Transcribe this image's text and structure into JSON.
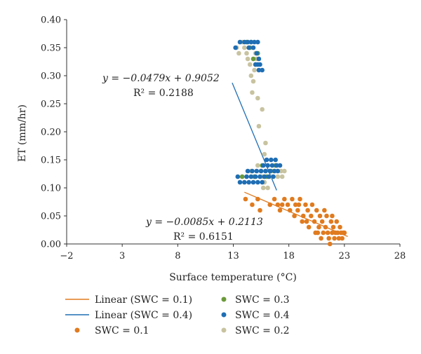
{
  "chart_data": {
    "type": "scatter",
    "title": "",
    "xlabel": "Surface temperature (°C)",
    "ylabel": "ET (mm/hr)",
    "xlim": [
      -2,
      28
    ],
    "ylim": [
      0,
      0.4
    ],
    "x_ticks": [
      -2,
      3,
      8,
      13,
      18,
      23,
      28
    ],
    "y_ticks": [
      0.0,
      0.05,
      0.1,
      0.15,
      0.2,
      0.25,
      0.3,
      0.35,
      0.4
    ],
    "y_tick_labels": [
      "0.00",
      "0.05",
      "0.10",
      "0.15",
      "0.20",
      "0.25",
      "0.30",
      "0.35",
      "0.40"
    ],
    "grid": false,
    "legend_position": "bottom",
    "series": [
      {
        "name": "SWC = 0.1",
        "kind": "scatter",
        "color": "#E07B1F",
        "points": [
          [
            14.1,
            0.08
          ],
          [
            14.7,
            0.07
          ],
          [
            15.2,
            0.08
          ],
          [
            15.4,
            0.06
          ],
          [
            16.3,
            0.07
          ],
          [
            16.7,
            0.08
          ],
          [
            17.0,
            0.07
          ],
          [
            17.2,
            0.06
          ],
          [
            17.6,
            0.08
          ],
          [
            17.9,
            0.07
          ],
          [
            18.1,
            0.06
          ],
          [
            18.3,
            0.08
          ],
          [
            18.5,
            0.05
          ],
          [
            18.6,
            0.07
          ],
          [
            18.8,
            0.06
          ],
          [
            19.0,
            0.08
          ],
          [
            19.2,
            0.04
          ],
          [
            19.3,
            0.05
          ],
          [
            19.5,
            0.07
          ],
          [
            19.7,
            0.06
          ],
          [
            19.8,
            0.03
          ],
          [
            20.0,
            0.05
          ],
          [
            20.1,
            0.07
          ],
          [
            20.3,
            0.04
          ],
          [
            20.4,
            0.02
          ],
          [
            20.5,
            0.06
          ],
          [
            20.7,
            0.03
          ],
          [
            20.8,
            0.05
          ],
          [
            20.9,
            0.01
          ],
          [
            21.0,
            0.04
          ],
          [
            21.1,
            0.02
          ],
          [
            21.2,
            0.06
          ],
          [
            21.3,
            0.03
          ],
          [
            21.4,
            0.05
          ],
          [
            21.5,
            0.02
          ],
          [
            21.6,
            0.01
          ],
          [
            21.7,
            0.0
          ],
          [
            21.8,
            0.04
          ],
          [
            21.9,
            0.02
          ],
          [
            22.0,
            0.03
          ],
          [
            22.1,
            0.01
          ],
          [
            22.2,
            0.02
          ],
          [
            22.3,
            0.04
          ],
          [
            22.4,
            0.02
          ],
          [
            22.5,
            0.01
          ],
          [
            22.6,
            0.03
          ],
          [
            22.7,
            0.02
          ],
          [
            22.8,
            0.01
          ],
          [
            22.9,
            0.02
          ],
          [
            23.0,
            0.02
          ],
          [
            20.6,
            0.02
          ],
          [
            21.9,
            0.05
          ],
          [
            19.6,
            0.04
          ],
          [
            18.9,
            0.07
          ],
          [
            17.4,
            0.07
          ]
        ]
      },
      {
        "name": "SWC = 0.2",
        "kind": "scatter",
        "color": "#C8C3A0",
        "points": [
          [
            13.3,
            0.35
          ],
          [
            13.5,
            0.34
          ],
          [
            13.8,
            0.36
          ],
          [
            14.0,
            0.35
          ],
          [
            14.2,
            0.34
          ],
          [
            14.3,
            0.33
          ],
          [
            14.5,
            0.32
          ],
          [
            14.6,
            0.3
          ],
          [
            14.8,
            0.29
          ],
          [
            14.9,
            0.31
          ],
          [
            14.7,
            0.27
          ],
          [
            15.0,
            0.34
          ],
          [
            15.1,
            0.33
          ],
          [
            15.2,
            0.26
          ],
          [
            15.6,
            0.24
          ],
          [
            15.3,
            0.21
          ],
          [
            15.9,
            0.18
          ],
          [
            15.8,
            0.16
          ],
          [
            15.2,
            0.14
          ],
          [
            15.5,
            0.13
          ],
          [
            15.6,
            0.12
          ],
          [
            15.8,
            0.11
          ],
          [
            15.7,
            0.1
          ],
          [
            16.1,
            0.1
          ],
          [
            16.4,
            0.12
          ],
          [
            16.7,
            0.13
          ],
          [
            17.0,
            0.12
          ],
          [
            17.3,
            0.13
          ],
          [
            17.6,
            0.13
          ],
          [
            17.4,
            0.12
          ],
          [
            16.9,
            0.14
          ],
          [
            14.6,
            0.13
          ],
          [
            14.9,
            0.12
          ],
          [
            15.9,
            0.13
          ]
        ]
      },
      {
        "name": "SWC = 0.3",
        "kind": "scatter",
        "color": "#6B9A3A",
        "points": [
          [
            14.2,
            0.36
          ],
          [
            14.5,
            0.35
          ],
          [
            14.8,
            0.33
          ],
          [
            15.0,
            0.32
          ],
          [
            15.2,
            0.34
          ],
          [
            14.6,
            0.36
          ],
          [
            13.8,
            0.12
          ],
          [
            14.9,
            0.12
          ],
          [
            15.6,
            0.14
          ],
          [
            16.0,
            0.12
          ],
          [
            16.4,
            0.13
          ],
          [
            16.8,
            0.14
          ]
        ]
      },
      {
        "name": "SWC = 0.4",
        "kind": "scatter",
        "color": "#1F6EB4",
        "points": [
          [
            13.2,
            0.35
          ],
          [
            13.6,
            0.36
          ],
          [
            14.0,
            0.36
          ],
          [
            14.3,
            0.36
          ],
          [
            14.6,
            0.36
          ],
          [
            14.9,
            0.36
          ],
          [
            15.2,
            0.36
          ],
          [
            14.4,
            0.35
          ],
          [
            14.8,
            0.35
          ],
          [
            15.1,
            0.34
          ],
          [
            15.3,
            0.33
          ],
          [
            15.2,
            0.32
          ],
          [
            15.4,
            0.32
          ],
          [
            15.6,
            0.31
          ],
          [
            15.3,
            0.31
          ],
          [
            15.0,
            0.32
          ],
          [
            13.6,
            0.11
          ],
          [
            14.0,
            0.11
          ],
          [
            14.4,
            0.11
          ],
          [
            14.8,
            0.11
          ],
          [
            15.2,
            0.11
          ],
          [
            15.6,
            0.11
          ],
          [
            14.2,
            0.12
          ],
          [
            14.6,
            0.12
          ],
          [
            15.0,
            0.12
          ],
          [
            15.4,
            0.12
          ],
          [
            15.8,
            0.12
          ],
          [
            16.2,
            0.12
          ],
          [
            16.6,
            0.12
          ],
          [
            14.3,
            0.13
          ],
          [
            14.7,
            0.13
          ],
          [
            15.1,
            0.13
          ],
          [
            15.5,
            0.13
          ],
          [
            15.9,
            0.13
          ],
          [
            16.3,
            0.13
          ],
          [
            16.7,
            0.13
          ],
          [
            17.0,
            0.13
          ],
          [
            15.7,
            0.14
          ],
          [
            16.1,
            0.14
          ],
          [
            16.5,
            0.14
          ],
          [
            16.9,
            0.14
          ],
          [
            16.0,
            0.15
          ],
          [
            16.4,
            0.15
          ],
          [
            16.8,
            0.15
          ],
          [
            13.4,
            0.12
          ],
          [
            17.2,
            0.14
          ]
        ]
      },
      {
        "name": "Linear (SWC = 0.1)",
        "kind": "line",
        "color": "#E07B1F",
        "slope": -0.0085,
        "intercept": 0.2113,
        "x_range": [
          14.0,
          23.3
        ]
      },
      {
        "name": "Linear (SWC = 0.4)",
        "kind": "line",
        "color": "#1F6EB4",
        "slope": -0.0479,
        "intercept": 0.9052,
        "x_range": [
          12.9,
          16.9
        ]
      }
    ],
    "annotations": [
      {
        "eq": "y = −0.0479x + 0.9052",
        "r2": "R² = 0.2188"
      },
      {
        "eq": "y = −0.0085x + 0.2113",
        "r2": "R² = 0.6151"
      }
    ],
    "legend_order": [
      4,
      2,
      5,
      3,
      0,
      1
    ]
  }
}
